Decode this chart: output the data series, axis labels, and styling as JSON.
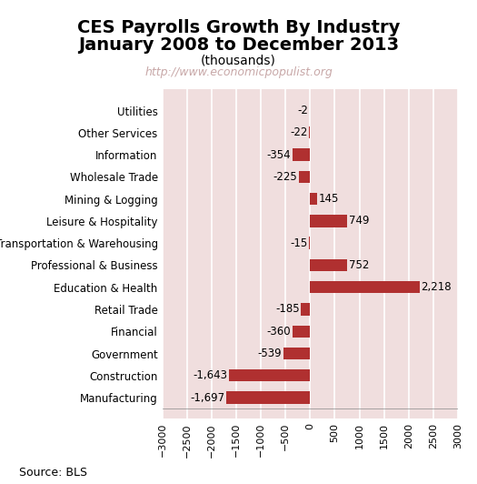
{
  "title_line1": "CES Payrolls Growth By Industry",
  "title_line2": "January 2008 to December 2013",
  "subtitle": "(thousands)",
  "watermark": "http://www.economicpopulist.org",
  "source": "Source: BLS",
  "categories": [
    "Utilities",
    "Other Services",
    "Information",
    "Wholesale Trade",
    "Mining & Logging",
    "Leisure & Hospitality",
    "Transportation & Warehousing",
    "Professional & Business",
    "Education & Health",
    "Retail Trade",
    "Financial",
    "Government",
    "Construction",
    "Manufacturing"
  ],
  "values": [
    -2,
    -22,
    -354,
    -225,
    145,
    749,
    -15,
    752,
    2218,
    -185,
    -360,
    -539,
    -1643,
    -1697
  ],
  "bar_color": "#b03030",
  "plot_bg_color": "#f0dede",
  "figure_bg_color": "#ffffff",
  "grid_color": "#ffffff",
  "xlim": [
    -3000,
    3000
  ],
  "xticks": [
    -3000,
    -2500,
    -2000,
    -1500,
    -1000,
    -500,
    0,
    500,
    1000,
    1500,
    2000,
    2500,
    3000
  ],
  "title_fontsize": 14,
  "subtitle_fontsize": 10,
  "watermark_fontsize": 9,
  "label_fontsize": 8.5,
  "tick_fontsize": 8,
  "source_fontsize": 9,
  "bar_height": 0.55
}
